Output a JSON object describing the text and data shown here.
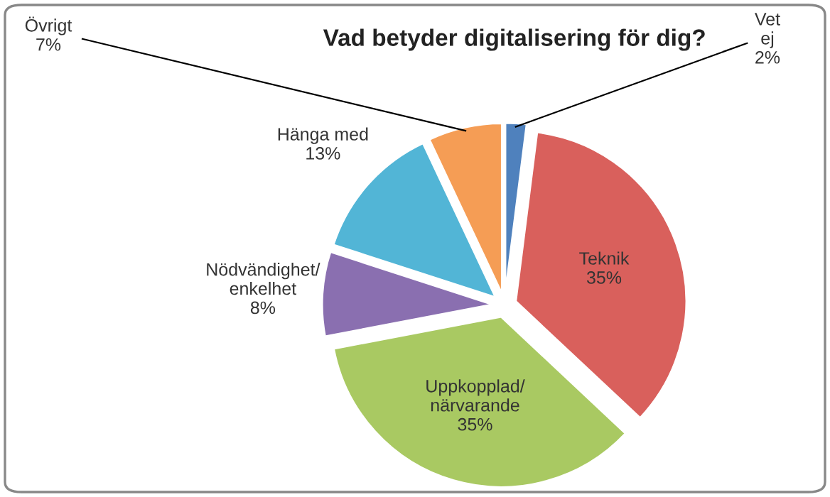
{
  "chart_data": {
    "type": "pie",
    "title": "Vad betyder digitalisering för dig?",
    "categories": [
      "Vet\nej",
      "Teknik",
      "Uppkopplad/\nnärvarande",
      "Nödvändighet/\nenkelhet",
      "Hänga med",
      "Övrigt"
    ],
    "values": [
      2,
      35,
      35,
      8,
      13,
      7
    ],
    "colors": [
      "#4f81bd",
      "#d9605c",
      "#a9c962",
      "#8a6fb0",
      "#52b5d6",
      "#f59d55"
    ],
    "value_labels": [
      "2%",
      "35%",
      "35%",
      "8%",
      "13%",
      "7%"
    ],
    "legend": false
  }
}
